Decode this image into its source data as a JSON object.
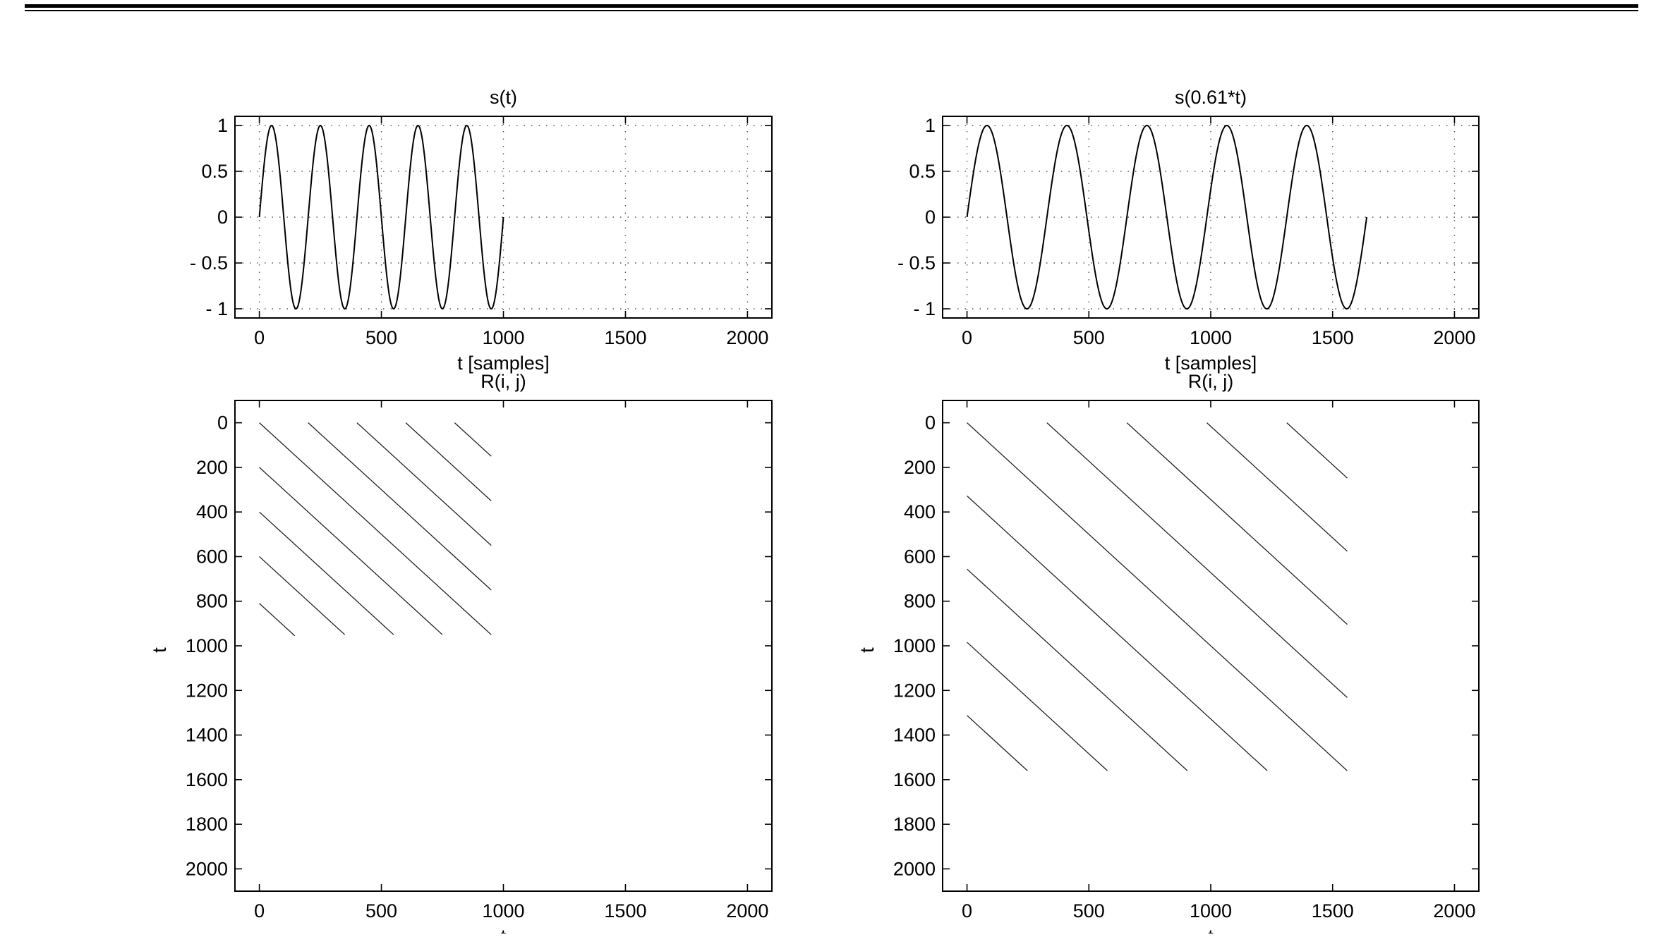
{
  "chart_data": [
    {
      "id": "signal_a",
      "type": "line",
      "title": "s(t)",
      "xlabel": "t [samples]",
      "ylabel": "",
      "xlim": [
        -100,
        2100
      ],
      "ylim": [
        -1.1,
        1.1
      ],
      "xticks": [
        0,
        500,
        1000,
        1500,
        2000
      ],
      "yticks": [
        1,
        0.5,
        0,
        -0.5,
        -1
      ],
      "ytick_labels": [
        "1",
        "0.5",
        "0",
        "- 0.5",
        "- 1"
      ],
      "grid": true,
      "series": [
        {
          "function": "sin",
          "period_samples": 200,
          "x_start": 0,
          "x_end": 1000,
          "amplitude": 1
        }
      ]
    },
    {
      "id": "signal_b",
      "type": "line",
      "title": "s(0.61*t)",
      "xlabel": "t [samples]",
      "ylabel": "",
      "xlim": [
        -100,
        2100
      ],
      "ylim": [
        -1.1,
        1.1
      ],
      "xticks": [
        0,
        500,
        1000,
        1500,
        2000
      ],
      "yticks": [
        1,
        0.5,
        0,
        -0.5,
        -1
      ],
      "ytick_labels": [
        "1",
        "0.5",
        "0",
        "- 0.5",
        "- 1"
      ],
      "grid": true,
      "series": [
        {
          "function": "sin",
          "period_samples": 328,
          "x_start": 0,
          "x_end": 1640,
          "amplitude": 1
        }
      ]
    },
    {
      "id": "recurrence_a",
      "type": "scatter",
      "title": "R(i, j)",
      "xlabel": "t",
      "ylabel": "t",
      "xlim": [
        -100,
        2100
      ],
      "ylim": [
        -100,
        2100
      ],
      "y_inverted": true,
      "xticks": [
        0,
        500,
        1000,
        1500,
        2000
      ],
      "yticks": [
        0,
        200,
        400,
        600,
        800,
        1000,
        1200,
        1400,
        1600,
        1800,
        2000
      ],
      "grid": false,
      "segments": [
        [
          [
            0,
            0
          ],
          [
            950,
            950
          ]
        ],
        [
          [
            200,
            0
          ],
          [
            950,
            750
          ]
        ],
        [
          [
            400,
            0
          ],
          [
            950,
            550
          ]
        ],
        [
          [
            600,
            0
          ],
          [
            950,
            350
          ]
        ],
        [
          [
            800,
            0
          ],
          [
            950,
            150
          ]
        ],
        [
          [
            0,
            200
          ],
          [
            750,
            950
          ]
        ],
        [
          [
            0,
            400
          ],
          [
            550,
            950
          ]
        ],
        [
          [
            0,
            600
          ],
          [
            350,
            950
          ]
        ],
        [
          [
            0,
            810
          ],
          [
            145,
            955
          ]
        ]
      ]
    },
    {
      "id": "recurrence_b",
      "type": "scatter",
      "title": "R(i, j)",
      "xlabel": "t",
      "ylabel": "t",
      "xlim": [
        -100,
        2100
      ],
      "ylim": [
        -100,
        2100
      ],
      "y_inverted": true,
      "xticks": [
        0,
        500,
        1000,
        1500,
        2000
      ],
      "yticks": [
        0,
        200,
        400,
        600,
        800,
        1000,
        1200,
        1400,
        1600,
        1800,
        2000
      ],
      "grid": false,
      "segments": [
        [
          [
            0,
            0
          ],
          [
            1560,
            1560
          ]
        ],
        [
          [
            328,
            0
          ],
          [
            1560,
            1232
          ]
        ],
        [
          [
            656,
            0
          ],
          [
            1560,
            904
          ]
        ],
        [
          [
            984,
            0
          ],
          [
            1560,
            576
          ]
        ],
        [
          [
            1312,
            0
          ],
          [
            1560,
            248
          ]
        ],
        [
          [
            0,
            328
          ],
          [
            1232,
            1560
          ]
        ],
        [
          [
            0,
            656
          ],
          [
            904,
            1560
          ]
        ],
        [
          [
            0,
            984
          ],
          [
            576,
            1560
          ]
        ],
        [
          [
            0,
            1312
          ],
          [
            248,
            1560
          ]
        ]
      ]
    }
  ]
}
